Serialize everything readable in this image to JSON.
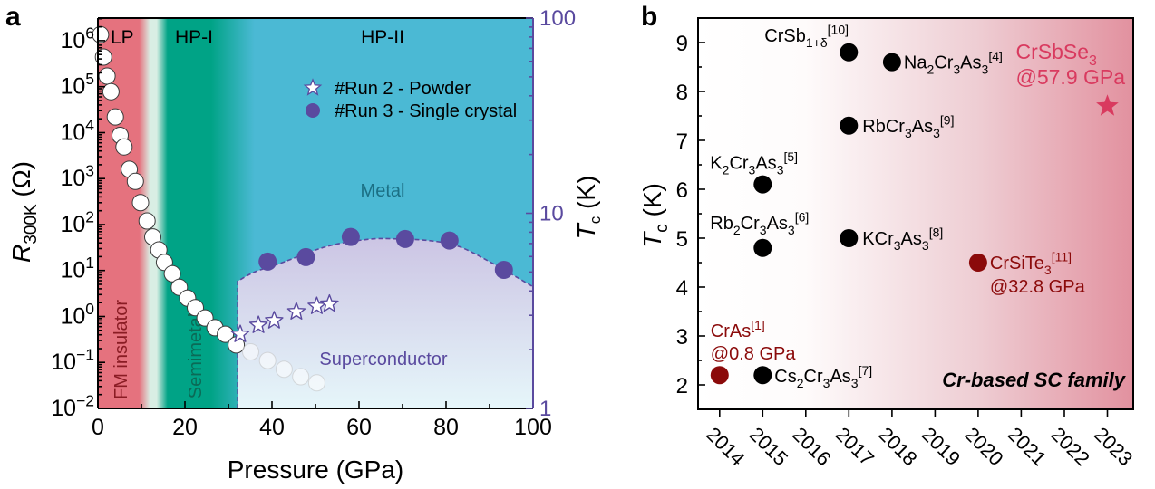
{
  "chart_data": [
    {
      "panel_label": "a",
      "type": "scatter",
      "title": "",
      "xlabel": "Pressure (GPa)",
      "xlim": [
        0,
        100
      ],
      "xticks": [
        {
          "v": 0,
          "label": "0"
        },
        {
          "v": 20,
          "label": "20"
        },
        {
          "v": 40,
          "label": "40"
        },
        {
          "v": 60,
          "label": "60"
        },
        {
          "v": 80,
          "label": "80"
        },
        {
          "v": 100,
          "label": "100"
        }
      ],
      "xminor_step": 10,
      "ylabel": [
        {
          "t": "R",
          "s": "it"
        },
        {
          "t": "300K",
          "s": "sub"
        },
        {
          "t": " (Ω)"
        }
      ],
      "yscale": "log",
      "ylim": [
        0.01,
        3100000
      ],
      "yticks": [
        {
          "v": 0.01,
          "label": [
            {
              "t": "10"
            },
            {
              "t": "−2",
              "s": "sup"
            }
          ]
        },
        {
          "v": 0.1,
          "label": [
            {
              "t": "10"
            },
            {
              "t": "−1",
              "s": "sup"
            }
          ]
        },
        {
          "v": 1,
          "label": [
            {
              "t": "10"
            },
            {
              "t": "0",
              "s": "sup"
            }
          ]
        },
        {
          "v": 10,
          "label": [
            {
              "t": "10"
            },
            {
              "t": "1",
              "s": "sup"
            }
          ]
        },
        {
          "v": 100,
          "label": [
            {
              "t": "10"
            },
            {
              "t": "2",
              "s": "sup"
            }
          ]
        },
        {
          "v": 1000,
          "label": [
            {
              "t": "10"
            },
            {
              "t": "3",
              "s": "sup"
            }
          ]
        },
        {
          "v": 10000,
          "label": [
            {
              "t": "10"
            },
            {
              "t": "4",
              "s": "sup"
            }
          ]
        },
        {
          "v": 100000,
          "label": [
            {
              "t": "10"
            },
            {
              "t": "5",
              "s": "sup"
            }
          ]
        },
        {
          "v": 1000000,
          "label": [
            {
              "t": "10"
            },
            {
              "t": "6",
              "s": "sup"
            }
          ]
        }
      ],
      "y2label": [
        {
          "t": "T",
          "s": "it"
        },
        {
          "t": "c",
          "s": "sub"
        },
        {
          "t": " (K)"
        }
      ],
      "y2scale": "log",
      "y2lim": [
        1,
        100
      ],
      "y2ticks": [
        {
          "v": 1,
          "label": "1"
        },
        {
          "v": 10,
          "label": "10"
        },
        {
          "v": 100,
          "label": "100"
        }
      ],
      "grid": false,
      "legend": {
        "placement": "top-center",
        "entries": [
          {
            "label": "#Run 2 - Powder",
            "marker": "open-star"
          },
          {
            "label": "#Run 3 - Single crystal",
            "marker": "filled-circle"
          }
        ]
      },
      "background": [
        {
          "p": 0,
          "color": "#E5727E"
        },
        {
          "p": 9.5,
          "color": "#E5727E"
        },
        {
          "p": 12,
          "color": "#D9EEE4"
        },
        {
          "p": 13.5,
          "color": "#D9EEE4"
        },
        {
          "p": 16,
          "color": "#00A386"
        },
        {
          "p": 26,
          "color": "#00A386"
        },
        {
          "p": 36,
          "color": "#4BB9D4"
        },
        {
          "p": 100,
          "color": "#4BB9D4"
        }
      ],
      "phase_labels": [
        {
          "label": "LP"
        },
        {
          "label": "HP-I"
        },
        {
          "label": "HP-II"
        }
      ],
      "region_labels": {
        "fm_insulator": "FM insulator",
        "semimetal": "Semimetal",
        "metal": "Metal",
        "superconductor": "Superconductor"
      },
      "colors": {
        "purple": "#5A4A9F",
        "fm_insulator_text": "#8A1C24",
        "semimetal_text": "#0B6A56",
        "metal_text": "#1B6F84",
        "sc_fill_top": "#CCC5E4",
        "sc_fill_bottom": "#E6F6FA"
      },
      "series": [
        {
          "name": "R300K",
          "axis": "left",
          "marker": "open-circle",
          "points": [
            {
              "p": 0.6,
              "v": 1350000
            },
            {
              "p": 1.3,
              "v": 440000
            },
            {
              "p": 2.1,
              "v": 170000
            },
            {
              "p": 3.0,
              "v": 78000
            },
            {
              "p": 4.0,
              "v": 22000
            },
            {
              "p": 5.1,
              "v": 8700
            },
            {
              "p": 6.0,
              "v": 4900
            },
            {
              "p": 7.2,
              "v": 1600
            },
            {
              "p": 8.6,
              "v": 870
            },
            {
              "p": 9.8,
              "v": 300
            },
            {
              "p": 11.3,
              "v": 120
            },
            {
              "p": 12.6,
              "v": 54
            },
            {
              "p": 14.0,
              "v": 28
            },
            {
              "p": 15.3,
              "v": 15
            },
            {
              "p": 17.1,
              "v": 8.5
            },
            {
              "p": 18.7,
              "v": 4.3
            },
            {
              "p": 20.6,
              "v": 2.5
            },
            {
              "p": 22.4,
              "v": 1.55
            },
            {
              "p": 24.6,
              "v": 0.93
            },
            {
              "p": 26.9,
              "v": 0.57
            },
            {
              "p": 29.3,
              "v": 0.41
            },
            {
              "p": 31.8,
              "v": 0.24
            }
          ],
          "faded_points": [
            {
              "p": 35.1,
              "v": 0.17
            },
            {
              "p": 39.0,
              "v": 0.11
            },
            {
              "p": 42.8,
              "v": 0.071
            },
            {
              "p": 46.6,
              "v": 0.049
            },
            {
              "p": 50.3,
              "v": 0.036
            }
          ]
        },
        {
          "name": "#Run 2 - Powder",
          "axis": "right",
          "marker": "open-star",
          "points": [
            {
              "p": 32.7,
              "v": 2.4
            },
            {
              "p": 36.9,
              "v": 2.67
            },
            {
              "p": 40.5,
              "v": 2.82
            },
            {
              "p": 45.6,
              "v": 3.13
            },
            {
              "p": 50.3,
              "v": 3.34
            },
            {
              "p": 53.2,
              "v": 3.43
            }
          ]
        },
        {
          "name": "#Run 3 - Single crystal",
          "axis": "right",
          "marker": "filled-circle",
          "points": [
            {
              "p": 39.0,
              "v": 5.65
            },
            {
              "p": 47.8,
              "v": 5.96
            },
            {
              "p": 58.1,
              "v": 7.57
            },
            {
              "p": 70.6,
              "v": 7.38
            },
            {
              "p": 80.8,
              "v": 7.25
            },
            {
              "p": 93.3,
              "v": 5.13
            }
          ]
        }
      ],
      "sc_boundary": {
        "onset_pressure": 32.1,
        "curve": [
          {
            "p": 32.1,
            "tc": 4.48
          },
          {
            "p": 36,
            "tc": 5.0
          },
          {
            "p": 42,
            "tc": 5.55
          },
          {
            "p": 52.5,
            "tc": 6.75
          },
          {
            "p": 62,
            "tc": 7.35
          },
          {
            "p": 68,
            "tc": 7.4
          },
          {
            "p": 76,
            "tc": 7.25
          },
          {
            "p": 83,
            "tc": 6.75
          },
          {
            "p": 90.6,
            "tc": 5.55
          },
          {
            "p": 100,
            "tc": 4.2
          }
        ]
      }
    },
    {
      "panel_label": "b",
      "type": "scatter",
      "title": "",
      "xlabel": "",
      "xlim": [
        2013.5,
        2023.6
      ],
      "xticks": [
        "2014",
        "2015",
        "2016",
        "2017",
        "2018",
        "2019",
        "2020",
        "2021",
        "2022",
        "2023"
      ],
      "ylabel": [
        {
          "t": "T",
          "s": "it"
        },
        {
          "t": "c",
          "s": "sub"
        },
        {
          "t": " (K)"
        }
      ],
      "ylim": [
        1.5,
        9.5
      ],
      "yticks": [
        "2",
        "3",
        "4",
        "5",
        "6",
        "7",
        "8",
        "9"
      ],
      "grid": false,
      "annotation": "Cr-based SC family",
      "background": [
        {
          "year": 2013.5,
          "color": "#FFFFFF"
        },
        {
          "year": 2016,
          "color": "#FEFBFB"
        },
        {
          "year": 2020,
          "color": "#EECDD3"
        },
        {
          "year": 2023.6,
          "color": "#E2919F"
        }
      ],
      "points": [
        {
          "year": 2014,
          "tc": 2.2,
          "marker": "circle",
          "color": "#8B0A0A",
          "label": [
            {
              "t": "CrAs"
            },
            {
              "t": "[1]",
              "s": "sup"
            }
          ],
          "note": "@0.8 GPa"
        },
        {
          "year": 2015,
          "tc": 6.1,
          "marker": "circle",
          "color": "#000000",
          "label": [
            {
              "t": "K"
            },
            {
              "t": "2",
              "s": "sub"
            },
            {
              "t": "Cr"
            },
            {
              "t": "3",
              "s": "sub"
            },
            {
              "t": "As"
            },
            {
              "t": "3",
              "s": "sub"
            },
            {
              "t": "[5]",
              "s": "sup"
            }
          ]
        },
        {
          "year": 2015,
          "tc": 4.8,
          "marker": "circle",
          "color": "#000000",
          "label": [
            {
              "t": "Rb"
            },
            {
              "t": "2",
              "s": "sub"
            },
            {
              "t": "Cr"
            },
            {
              "t": "3",
              "s": "sub"
            },
            {
              "t": "As"
            },
            {
              "t": "3",
              "s": "sub"
            },
            {
              "t": "[6]",
              "s": "sup"
            }
          ]
        },
        {
          "year": 2015,
          "tc": 2.2,
          "marker": "circle",
          "color": "#000000",
          "label": [
            {
              "t": "Cs"
            },
            {
              "t": "2",
              "s": "sub"
            },
            {
              "t": "Cr"
            },
            {
              "t": "3",
              "s": "sub"
            },
            {
              "t": "As"
            },
            {
              "t": "3",
              "s": "sub"
            },
            {
              "t": "[7]",
              "s": "sup"
            }
          ]
        },
        {
          "year": 2017,
          "tc": 8.8,
          "marker": "circle",
          "color": "#000000",
          "label": [
            {
              "t": "CrSb"
            },
            {
              "t": "1+δ",
              "s": "sub"
            },
            {
              "t": "[10]",
              "s": "sup"
            }
          ]
        },
        {
          "year": 2017,
          "tc": 7.3,
          "marker": "circle",
          "color": "#000000",
          "label": [
            {
              "t": "RbCr"
            },
            {
              "t": "3",
              "s": "sub"
            },
            {
              "t": "As"
            },
            {
              "t": "3",
              "s": "sub"
            },
            {
              "t": "[9]",
              "s": "sup"
            }
          ]
        },
        {
          "year": 2017,
          "tc": 5.0,
          "marker": "circle",
          "color": "#000000",
          "label": [
            {
              "t": "KCr"
            },
            {
              "t": "3",
              "s": "sub"
            },
            {
              "t": "As"
            },
            {
              "t": "3",
              "s": "sub"
            },
            {
              "t": "[8]",
              "s": "sup"
            }
          ]
        },
        {
          "year": 2018,
          "tc": 8.6,
          "marker": "circle",
          "color": "#000000",
          "label": [
            {
              "t": "Na"
            },
            {
              "t": "2",
              "s": "sub"
            },
            {
              "t": "Cr"
            },
            {
              "t": "3",
              "s": "sub"
            },
            {
              "t": "As"
            },
            {
              "t": "3",
              "s": "sub"
            },
            {
              "t": "[4]",
              "s": "sup"
            }
          ]
        },
        {
          "year": 2020,
          "tc": 4.5,
          "marker": "circle",
          "color": "#8B0A0A",
          "label": [
            {
              "t": "CrSiTe"
            },
            {
              "t": "3",
              "s": "sub"
            },
            {
              "t": "[11]",
              "s": "sup"
            }
          ],
          "note": "@32.8 GPa"
        },
        {
          "year": 2023,
          "tc": 7.7,
          "marker": "star",
          "color": "#D93A5F",
          "label": [
            {
              "t": "CrSbSe"
            },
            {
              "t": "3",
              "s": "sub"
            }
          ],
          "note": "@57.9 GPa"
        }
      ]
    }
  ]
}
